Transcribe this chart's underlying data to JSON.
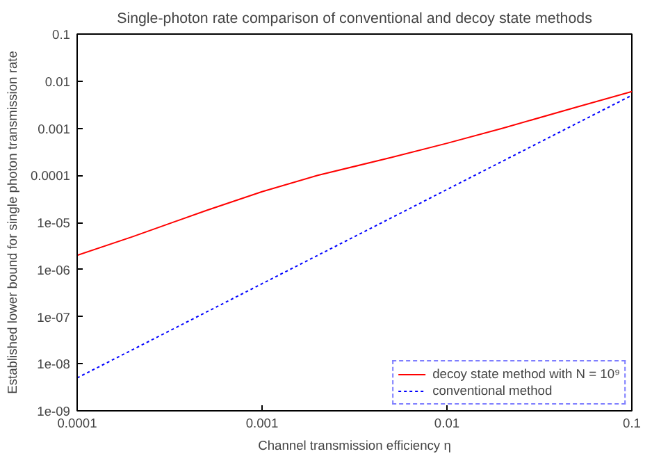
{
  "chart_data": {
    "type": "line",
    "title": "Single-photon rate comparison of conventional and decoy state methods",
    "xlabel": "Channel transmission efficiency η",
    "ylabel": "Established lower bound for single photon transmission rate",
    "log": "xy",
    "grid": false,
    "legend": "bottom right",
    "xlim": [
      0.0001,
      0.1
    ],
    "ylim": [
      1e-09,
      0.1
    ],
    "xticks": [
      {
        "value": 0.0001,
        "label": "0.0001"
      },
      {
        "value": 0.001,
        "label": "0.001"
      },
      {
        "value": 0.01,
        "label": "0.01"
      },
      {
        "value": 0.1,
        "label": "0.1"
      }
    ],
    "yticks": [
      {
        "value": 1e-09,
        "label": "1e-09"
      },
      {
        "value": 1e-08,
        "label": "1e-08"
      },
      {
        "value": 1e-07,
        "label": "1e-07"
      },
      {
        "value": 1e-06,
        "label": "1e-06"
      },
      {
        "value": 1e-05,
        "label": "1e-05"
      },
      {
        "value": 0.0001,
        "label": "0.0001"
      },
      {
        "value": 0.001,
        "label": "0.001"
      },
      {
        "value": 0.01,
        "label": "0.01"
      },
      {
        "value": 0.1,
        "label": "0.1"
      }
    ],
    "x": [
      0.0001,
      0.0002,
      0.0005,
      0.001,
      0.002,
      0.005,
      0.01,
      0.02,
      0.05,
      0.1
    ],
    "series": [
      {
        "name": "decoy state method with N = 10⁹",
        "color": "#ff0000",
        "line_style": "solid",
        "values": [
          2e-06,
          5e-06,
          1.8e-05,
          4.5e-05,
          0.0001,
          0.00024,
          0.00048,
          0.001,
          0.0028,
          0.006
        ]
      },
      {
        "name": "conventional method",
        "color": "#0000ff",
        "line_style": "dotted",
        "values": [
          5e-09,
          2e-08,
          1.25e-07,
          5e-07,
          2e-06,
          1.25e-05,
          5e-05,
          0.0002,
          0.00125,
          0.005
        ]
      }
    ]
  }
}
